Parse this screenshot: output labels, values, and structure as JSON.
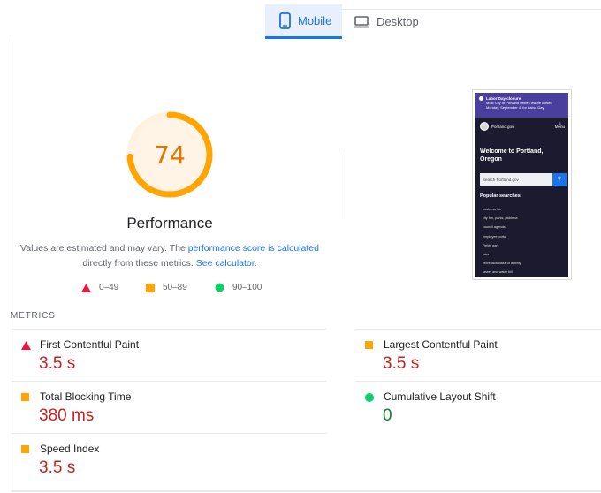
{
  "tabs": [
    {
      "label": "Mobile",
      "icon": "smartphone-icon",
      "active": true
    },
    {
      "label": "Desktop",
      "icon": "laptop-icon",
      "active": false
    }
  ],
  "performance": {
    "score": "74",
    "score_fraction": 0.74,
    "score_color": "#ffa400",
    "title": "Performance",
    "note_prefix": "Values are estimated and may vary. The ",
    "note_link1": "performance score is calculated",
    "note_middle": " directly from these metrics. ",
    "note_link2": "See calculator",
    "note_suffix": "."
  },
  "legend": [
    {
      "range": "0–49",
      "shape": "triangle",
      "color": "#ff4e42"
    },
    {
      "range": "50–89",
      "shape": "square",
      "color": "#ffa400"
    },
    {
      "range": "90–100",
      "shape": "circle",
      "color": "#0cce6b"
    }
  ],
  "screenshot": {
    "alert_title": "Labor Day closure",
    "alert_text_1": "Most City of Portland offices will be closed",
    "alert_text_2": "Monday, September 4, for Labor Day.",
    "site_name": "Portland.gov",
    "menu_label": "Menu",
    "welcome_1": "Welcome to Portland,",
    "welcome_2": "Oregon",
    "search_placeholder": "Search Portland.gov",
    "popular_title": "Popular searches",
    "popular_items": [
      "business tax",
      "city fun, parks, pickleba",
      "council agenda",
      "employee portal",
      "Fields park",
      "jobs",
      "recreation class or activity",
      "sewer and water bill"
    ]
  },
  "metrics_title": "METRICS",
  "metrics": [
    {
      "label": "First Contentful Paint",
      "value": "3.5 s",
      "status": "fail"
    },
    {
      "label": "Largest Contentful Paint",
      "value": "3.5 s",
      "status": "average"
    },
    {
      "label": "Total Blocking Time",
      "value": "380 ms",
      "status": "average"
    },
    {
      "label": "Cumulative Layout Shift",
      "value": "0",
      "status": "pass"
    },
    {
      "label": "Speed Index",
      "value": "3.5 s",
      "status": "average"
    }
  ]
}
